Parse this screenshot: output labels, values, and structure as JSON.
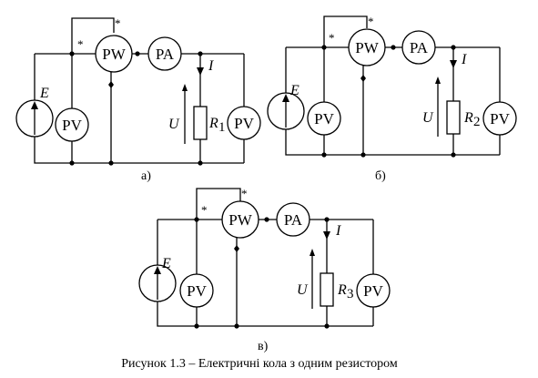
{
  "figure": {
    "caption": "Рисунок 1.3 – Електричні кола з одним резистором",
    "circuits": [
      {
        "id": "a",
        "label": "а)",
        "resistor": "1"
      },
      {
        "id": "b",
        "label": "б)",
        "resistor": "2"
      },
      {
        "id": "c",
        "label": "в)",
        "resistor": "3"
      }
    ],
    "symbols": {
      "source": "E",
      "voltmeter": "PV",
      "wattmeter": "PW",
      "ammeter": "PA",
      "current": "I",
      "voltage": "U",
      "resistor_letter": "R",
      "generator_mark": "*"
    }
  }
}
